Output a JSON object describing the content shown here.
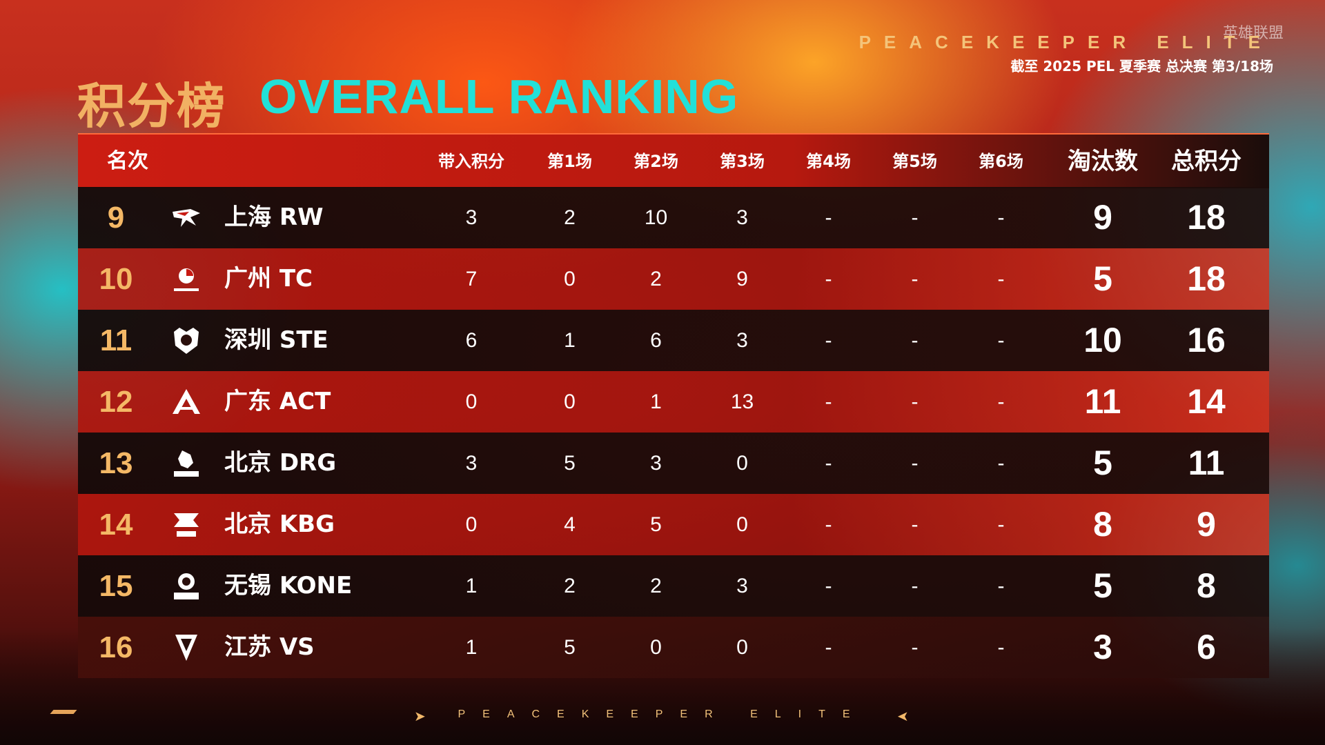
{
  "header": {
    "brand": "PEACEKEEPER ELITE",
    "watermark": "英雄联盟",
    "subtitle": "截至 2025 PEL 夏季赛 总决赛 第3/18场",
    "title_cn": "积分榜",
    "title_en": "OVERALL RANKING"
  },
  "table": {
    "columns": [
      "名次",
      "带入积分",
      "第1场",
      "第2场",
      "第3场",
      "第4场",
      "第5场",
      "第6场",
      "淘汰数",
      "总积分"
    ],
    "rows": [
      {
        "rank": "9",
        "team": "上海 RW",
        "logo": "rw-logo",
        "carry": "3",
        "g1": "2",
        "g2": "10",
        "g3": "3",
        "g4": "-",
        "g5": "-",
        "g6": "-",
        "elims": "9",
        "total": "18"
      },
      {
        "rank": "10",
        "team": "广州 TC",
        "logo": "tc-logo",
        "carry": "7",
        "g1": "0",
        "g2": "2",
        "g3": "9",
        "g4": "-",
        "g5": "-",
        "g6": "-",
        "elims": "5",
        "total": "18"
      },
      {
        "rank": "11",
        "team": "深圳 STE",
        "logo": "ste-logo",
        "carry": "6",
        "g1": "1",
        "g2": "6",
        "g3": "3",
        "g4": "-",
        "g5": "-",
        "g6": "-",
        "elims": "10",
        "total": "16"
      },
      {
        "rank": "12",
        "team": "广东 ACT",
        "logo": "act-logo",
        "carry": "0",
        "g1": "0",
        "g2": "1",
        "g3": "13",
        "g4": "-",
        "g5": "-",
        "g6": "-",
        "elims": "11",
        "total": "14"
      },
      {
        "rank": "13",
        "team": "北京 DRG",
        "logo": "drg-logo",
        "carry": "3",
        "g1": "5",
        "g2": "3",
        "g3": "0",
        "g4": "-",
        "g5": "-",
        "g6": "-",
        "elims": "5",
        "total": "11"
      },
      {
        "rank": "14",
        "team": "北京 KBG",
        "logo": "kbg-logo",
        "carry": "0",
        "g1": "4",
        "g2": "5",
        "g3": "0",
        "g4": "-",
        "g5": "-",
        "g6": "-",
        "elims": "8",
        "total": "9"
      },
      {
        "rank": "15",
        "team": "无锡 KONE",
        "logo": "kone-logo",
        "carry": "1",
        "g1": "2",
        "g2": "2",
        "g3": "3",
        "g4": "-",
        "g5": "-",
        "g6": "-",
        "elims": "5",
        "total": "8"
      },
      {
        "rank": "16",
        "team": "江苏 VS",
        "logo": "vs-logo",
        "carry": "1",
        "g1": "5",
        "g2": "0",
        "g3": "0",
        "g4": "-",
        "g5": "-",
        "g6": "-",
        "elims": "3",
        "total": "6"
      }
    ]
  },
  "footer": {
    "brand": "PEACEKEEPER ELITE"
  },
  "colors": {
    "accent_gold": "#f1b163",
    "accent_cyan": "#22e0d8",
    "row_red": "#b0160e",
    "row_dark": "#160a09"
  }
}
